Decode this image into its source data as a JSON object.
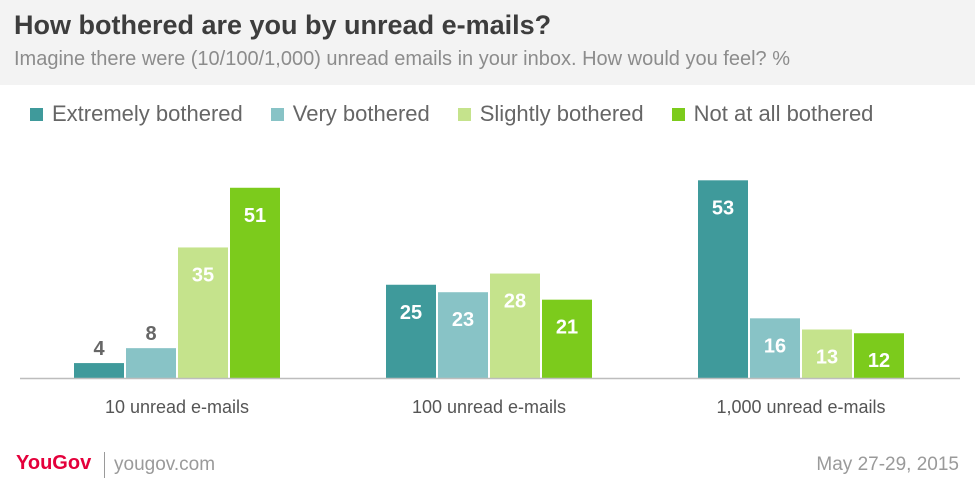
{
  "header": {
    "title": "How bothered are you by unread e-mails?",
    "subtitle": "Imagine there were (10/100/1,000) unread emails in your inbox. How would you feel? %"
  },
  "chart_data": {
    "type": "bar",
    "categories": [
      "10 unread e-mails",
      "100 unread e-mails",
      "1,000 unread e-mails"
    ],
    "series": [
      {
        "name": "Extremely bothered",
        "color": "#3f9a9b",
        "values": [
          4,
          25,
          53
        ]
      },
      {
        "name": "Very bothered",
        "color": "#88c3c6",
        "values": [
          8,
          23,
          16
        ]
      },
      {
        "name": "Slightly bothered",
        "color": "#c5e38c",
        "values": [
          35,
          28,
          13
        ]
      },
      {
        "name": "Not at all bothered",
        "color": "#7ccb1c",
        "values": [
          51,
          21,
          12
        ]
      }
    ],
    "ylim": [
      0,
      55
    ],
    "legend_position": "top",
    "grid": false,
    "data_labels": true
  },
  "footer": {
    "logo": "YouGov",
    "url": "yougov.com",
    "date": "May 27-29, 2015"
  }
}
